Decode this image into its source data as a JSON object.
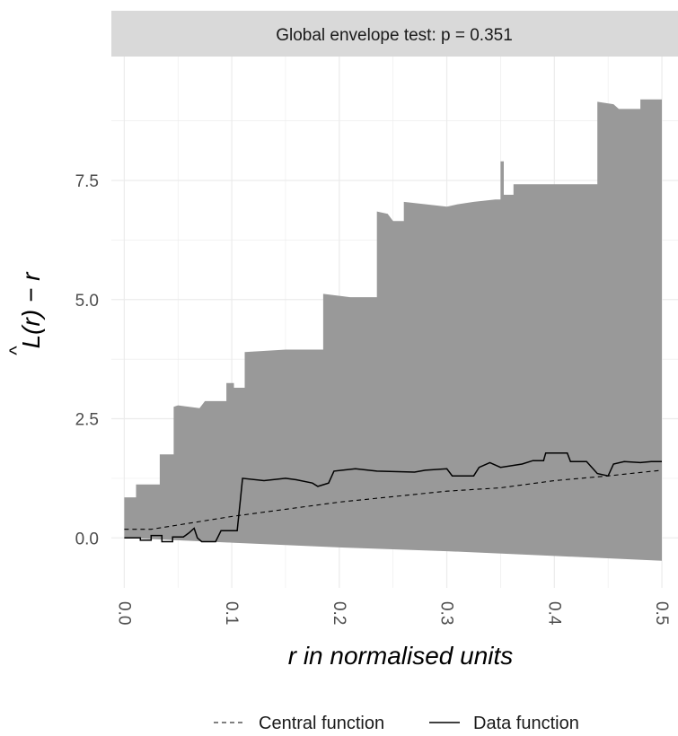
{
  "chart_data": {
    "type": "line",
    "title": "Global envelope test: p = 0.351",
    "xlabel": "r in normalised units",
    "ylabel": "L(r) − r",
    "ylabel_hat": "^",
    "xlim": [
      -0.012,
      0.515
    ],
    "ylim": [
      -1.05,
      10.1
    ],
    "x_ticks": [
      0.0,
      0.1,
      0.2,
      0.3,
      0.4,
      0.5
    ],
    "x_tick_labels": [
      "0.0",
      "0.1",
      "0.2",
      "0.3",
      "0.4",
      "0.5"
    ],
    "y_ticks": [
      0.0,
      2.5,
      5.0,
      7.5
    ],
    "y_tick_labels": [
      "0.0",
      "2.5",
      "5.0",
      "7.5"
    ],
    "grid": true,
    "legend_position": "bottom",
    "envelope": {
      "color": "#999999",
      "upper": [
        [
          0.0,
          0.85
        ],
        [
          0.011,
          0.85
        ],
        [
          0.011,
          1.12
        ],
        [
          0.033,
          1.12
        ],
        [
          0.033,
          1.75
        ],
        [
          0.046,
          1.75
        ],
        [
          0.046,
          2.75
        ],
        [
          0.05,
          2.78
        ],
        [
          0.07,
          2.72
        ],
        [
          0.075,
          2.87
        ],
        [
          0.095,
          2.87
        ],
        [
          0.095,
          3.25
        ],
        [
          0.102,
          3.25
        ],
        [
          0.102,
          3.15
        ],
        [
          0.112,
          3.15
        ],
        [
          0.112,
          3.9
        ],
        [
          0.15,
          3.95
        ],
        [
          0.185,
          3.95
        ],
        [
          0.185,
          5.12
        ],
        [
          0.21,
          5.05
        ],
        [
          0.235,
          5.05
        ],
        [
          0.235,
          6.85
        ],
        [
          0.245,
          6.8
        ],
        [
          0.25,
          6.65
        ],
        [
          0.26,
          6.65
        ],
        [
          0.26,
          7.05
        ],
        [
          0.3,
          6.95
        ],
        [
          0.31,
          7.0
        ],
        [
          0.325,
          7.05
        ],
        [
          0.345,
          7.1
        ],
        [
          0.35,
          7.1
        ],
        [
          0.35,
          7.9
        ],
        [
          0.353,
          7.9
        ],
        [
          0.353,
          7.2
        ],
        [
          0.362,
          7.2
        ],
        [
          0.362,
          7.42
        ],
        [
          0.4,
          7.42
        ],
        [
          0.44,
          7.42
        ],
        [
          0.44,
          9.15
        ],
        [
          0.455,
          9.1
        ],
        [
          0.46,
          9.0
        ],
        [
          0.48,
          9.0
        ],
        [
          0.48,
          9.2
        ],
        [
          0.5,
          9.2
        ]
      ],
      "lower": [
        [
          0.0,
          0.0
        ],
        [
          0.1,
          -0.1
        ],
        [
          0.2,
          -0.2
        ],
        [
          0.3,
          -0.28
        ],
        [
          0.4,
          -0.38
        ],
        [
          0.5,
          -0.48
        ]
      ]
    },
    "series": [
      {
        "name": "Data function",
        "style": "solid",
        "color": "#000000",
        "points": [
          [
            0.0,
            0.0
          ],
          [
            0.015,
            0.0
          ],
          [
            0.015,
            -0.05
          ],
          [
            0.025,
            -0.05
          ],
          [
            0.025,
            0.05
          ],
          [
            0.035,
            0.05
          ],
          [
            0.035,
            -0.08
          ],
          [
            0.045,
            -0.08
          ],
          [
            0.045,
            0.02
          ],
          [
            0.055,
            0.02
          ],
          [
            0.06,
            0.1
          ],
          [
            0.065,
            0.2
          ],
          [
            0.068,
            0.0
          ],
          [
            0.072,
            -0.08
          ],
          [
            0.085,
            -0.08
          ],
          [
            0.09,
            0.15
          ],
          [
            0.105,
            0.15
          ],
          [
            0.108,
            0.8
          ],
          [
            0.11,
            1.25
          ],
          [
            0.13,
            1.2
          ],
          [
            0.15,
            1.25
          ],
          [
            0.16,
            1.22
          ],
          [
            0.175,
            1.15
          ],
          [
            0.18,
            1.08
          ],
          [
            0.19,
            1.15
          ],
          [
            0.195,
            1.4
          ],
          [
            0.215,
            1.45
          ],
          [
            0.235,
            1.4
          ],
          [
            0.27,
            1.38
          ],
          [
            0.28,
            1.42
          ],
          [
            0.3,
            1.45
          ],
          [
            0.305,
            1.3
          ],
          [
            0.325,
            1.3
          ],
          [
            0.33,
            1.48
          ],
          [
            0.34,
            1.58
          ],
          [
            0.35,
            1.48
          ],
          [
            0.37,
            1.55
          ],
          [
            0.38,
            1.62
          ],
          [
            0.39,
            1.62
          ],
          [
            0.392,
            1.78
          ],
          [
            0.412,
            1.78
          ],
          [
            0.415,
            1.6
          ],
          [
            0.43,
            1.6
          ],
          [
            0.44,
            1.35
          ],
          [
            0.45,
            1.3
          ],
          [
            0.455,
            1.55
          ],
          [
            0.465,
            1.6
          ],
          [
            0.48,
            1.58
          ],
          [
            0.49,
            1.6
          ],
          [
            0.5,
            1.6
          ]
        ]
      },
      {
        "name": "Central function",
        "style": "dashed",
        "color": "#000000",
        "points": [
          [
            0.0,
            0.18
          ],
          [
            0.025,
            0.18
          ],
          [
            0.1,
            0.45
          ],
          [
            0.2,
            0.75
          ],
          [
            0.3,
            0.98
          ],
          [
            0.35,
            1.05
          ],
          [
            0.4,
            1.2
          ],
          [
            0.45,
            1.3
          ],
          [
            0.5,
            1.42
          ]
        ]
      }
    ],
    "legend": [
      "Central function",
      "Data function"
    ]
  }
}
